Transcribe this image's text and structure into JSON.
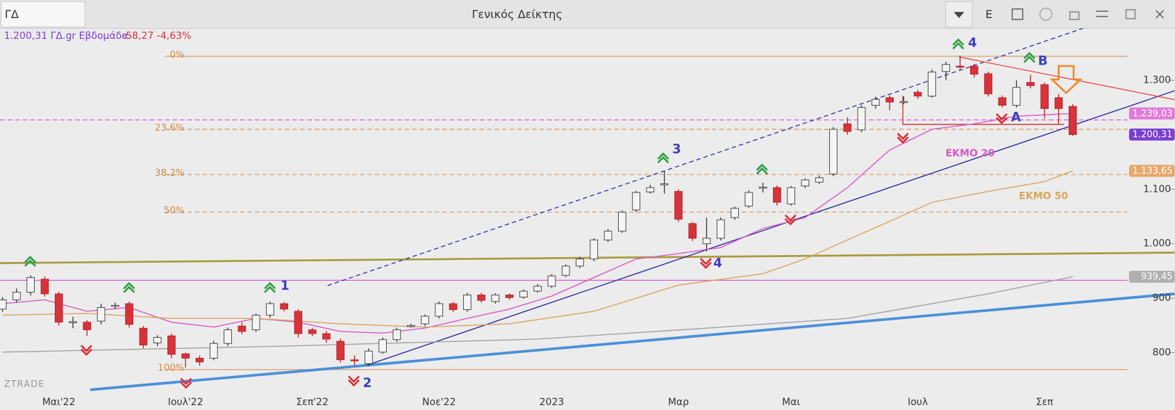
{
  "header": {
    "search": "ΓΔ",
    "title": "Γενικός Δείκτης",
    "button": "E",
    "info_price": "1.200,31 ΓΔ.gr Εβδομάδα",
    "info_change": "-58,27 -4,63%",
    "watermark": "ZTRADE"
  },
  "chart_data": {
    "type": "candlestick",
    "categories": [
      null,
      null,
      null,
      null,
      "Μαι'22",
      null,
      null,
      null,
      null,
      null,
      null,
      null,
      null,
      "Ιουλ'22",
      null,
      null,
      null,
      null,
      null,
      null,
      null,
      null,
      "Σεπ'22",
      null,
      null,
      null,
      null,
      null,
      null,
      null,
      null,
      "Νοε'22",
      null,
      null,
      null,
      null,
      null,
      null,
      null,
      "2023",
      null,
      null,
      null,
      null,
      null,
      null,
      null,
      null,
      "Μαρ",
      null,
      null,
      null,
      null,
      null,
      null,
      null,
      "Μαι",
      null,
      null,
      null,
      null,
      null,
      null,
      null,
      null,
      "Ιουλ",
      null,
      null,
      null,
      null,
      null,
      null,
      null,
      null,
      "Σεπ",
      null,
      null
    ],
    "open": [
      880,
      897,
      911,
      935,
      908,
      856,
      856,
      858,
      885,
      890,
      845,
      818,
      831,
      798,
      790,
      790,
      817,
      849,
      842,
      869,
      890,
      876,
      842,
      835,
      821,
      787,
      780,
      801,
      824,
      849,
      853,
      867,
      890,
      879,
      906,
      894,
      906,
      902,
      913,
      922,
      942,
      959,
      972,
      1007,
      1023,
      1062,
      1095,
      1108,
      1096,
      1037,
      1000,
      1010,
      1048,
      1069,
      1103,
      1103,
      1073,
      1106,
      1113,
      1128,
      1220,
      1209,
      1254,
      1268,
      1260,
      1278,
      1271,
      1316,
      1326,
      1326,
      1312,
      1268,
      1254,
      1296,
      1292,
      1268,
      1252
    ],
    "high": [
      902,
      918,
      942,
      940,
      912,
      866,
      860,
      890,
      892,
      894,
      849,
      832,
      835,
      800,
      795,
      822,
      846,
      856,
      872,
      894,
      893,
      880,
      846,
      840,
      826,
      795,
      808,
      828,
      846,
      853,
      870,
      894,
      893,
      910,
      910,
      909,
      909,
      916,
      926,
      944,
      962,
      976,
      1010,
      1027,
      1061,
      1097,
      1108,
      1133,
      1100,
      1040,
      1048,
      1048,
      1068,
      1098,
      1112,
      1107,
      1106,
      1120,
      1125,
      1214,
      1232,
      1254,
      1270,
      1272,
      1270,
      1282,
      1320,
      1334,
      1345,
      1330,
      1316,
      1272,
      1300,
      1310,
      1296,
      1275,
      1256
    ],
    "low": [
      875,
      892,
      905,
      903,
      850,
      845,
      831,
      852,
      880,
      846,
      808,
      812,
      790,
      773,
      776,
      786,
      812,
      834,
      838,
      864,
      876,
      828,
      830,
      818,
      782,
      777,
      776,
      798,
      820,
      846,
      849,
      863,
      875,
      875,
      892,
      890,
      897,
      899,
      910,
      919,
      939,
      955,
      968,
      1003,
      1020,
      1058,
      1092,
      1092,
      1040,
      1005,
      986,
      1006,
      1044,
      1066,
      1094,
      1070,
      1070,
      1102,
      1110,
      1124,
      1200,
      1205,
      1248,
      1245,
      1256,
      1266,
      1268,
      1300,
      1320,
      1305,
      1270,
      1250,
      1250,
      1285,
      1230,
      1220,
      1198
    ],
    "close": [
      897,
      911,
      938,
      908,
      856,
      857,
      842,
      883,
      887,
      852,
      814,
      828,
      797,
      790,
      783,
      817,
      842,
      839,
      869,
      890,
      880,
      835,
      835,
      825,
      787,
      786,
      803,
      824,
      842,
      850,
      867,
      890,
      879,
      906,
      896,
      906,
      901,
      913,
      922,
      941,
      959,
      972,
      1007,
      1023,
      1058,
      1094,
      1103,
      1110,
      1045,
      1010,
      1010,
      1044,
      1065,
      1094,
      1104,
      1076,
      1103,
      1117,
      1121,
      1210,
      1206,
      1250,
      1265,
      1260,
      1261,
      1271,
      1315,
      1329,
      1325,
      1311,
      1275,
      1254,
      1287,
      1290,
      1248,
      1248,
      1200.31
    ],
    "up_color": "#f4f4f4",
    "down_color": "#d8323a",
    "ylim": [
      732,
      1395
    ],
    "yticks": [
      {
        "value": 1300,
        "label": "1.300"
      },
      {
        "value": 1200,
        "label": "1.200"
      },
      {
        "value": 1100,
        "label": "1.100"
      },
      {
        "value": 1000,
        "label": "1.000"
      },
      {
        "value": 900,
        "label": "900"
      },
      {
        "value": 800,
        "label": "800"
      }
    ],
    "overlays": [
      {
        "name": "ΕΚΜΟ 20",
        "color": "#d957c8",
        "x": [
          0,
          3,
          6,
          9,
          12,
          15,
          18,
          21,
          24,
          27,
          30,
          33,
          36,
          39,
          42,
          45,
          48,
          51,
          54,
          57,
          60,
          63,
          66,
          69,
          72,
          76
        ],
        "values": [
          890,
          897,
          876,
          883,
          856,
          847,
          863,
          856,
          839,
          836,
          845,
          863,
          880,
          904,
          938,
          972,
          982,
          993,
          1028,
          1048,
          1103,
          1172,
          1210,
          1220,
          1234,
          1239.03
        ]
      },
      {
        "name": "ΕΚΜΟ 50",
        "color": "#d9a45c",
        "x": [
          0,
          6,
          12,
          18,
          24,
          30,
          36,
          42,
          48,
          54,
          57,
          60,
          63,
          66,
          70,
          74,
          76
        ],
        "values": [
          869,
          872,
          863,
          863,
          853,
          847,
          853,
          876,
          924,
          945,
          972,
          1007,
          1041,
          1076,
          1096,
          1114,
          1133.65
        ]
      },
      {
        "color": "#a0a0a0",
        "x": [
          0,
          20,
          38,
          50,
          60,
          70,
          76
        ],
        "values": [
          801,
          812,
          825,
          845,
          863,
          908,
          939.45
        ]
      }
    ],
    "fib_levels": [
      {
        "value": 1344,
        "label": "0%"
      },
      {
        "value": 1210,
        "label": "23.6%"
      },
      {
        "value": 1127,
        "label": "38.2%"
      },
      {
        "value": 1058,
        "label": "50%"
      },
      {
        "value": 769,
        "label": "100%"
      }
    ],
    "price_badges": [
      {
        "value": 1239.03,
        "label": "1.239,03",
        "color": "#e07ad8"
      },
      {
        "value": 1200.31,
        "label": "1.200,31",
        "color": "#7b3fd0"
      },
      {
        "value": 1133.65,
        "label": "1.133,65",
        "color": "#e8a86a"
      },
      {
        "value": 939.45,
        "label": "939,45",
        "color": "#b0b0b0"
      }
    ],
    "wave_labels": [
      "4",
      "B",
      "A",
      "3",
      "4",
      "1",
      "2"
    ]
  }
}
